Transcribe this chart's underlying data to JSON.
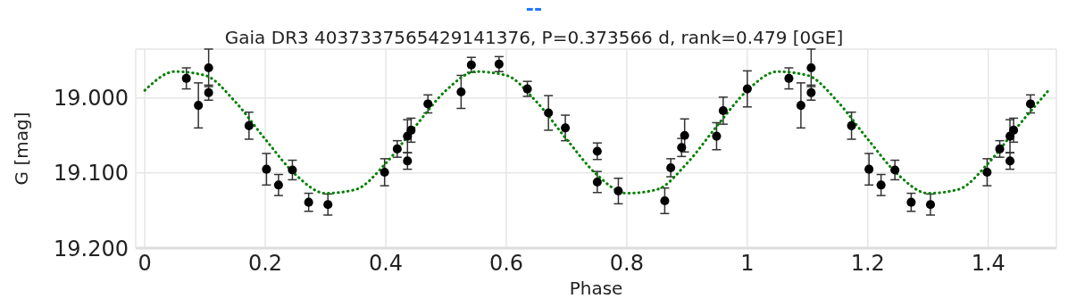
{
  "chart_data": {
    "type": "scatter",
    "title": "Gaia DR3 4037337565429141376, P=0.373566 d, rank=0.479 [0GE]",
    "annotations": [
      "--"
    ],
    "xlabel": "Phase",
    "ylabel": "G [mag]",
    "xlim": [
      -0.015,
      1.513
    ],
    "xticks": [
      0,
      0.2,
      0.4,
      0.6,
      0.8,
      1,
      1.2,
      1.4
    ],
    "ylim": [
      19.2,
      18.935
    ],
    "yticks": [
      {
        "value": 19.2,
        "label": "19.200"
      },
      {
        "value": 19.1,
        "label": "19.100"
      },
      {
        "value": 19,
        "label": "19.000"
      }
    ],
    "grid": true,
    "series": [
      {
        "color": "#000000",
        "marker": "circle",
        "x": [
          0.069,
          0.089,
          0.106,
          0.106,
          0.173,
          0.202,
          0.222,
          0.245,
          0.272,
          0.304,
          0.398,
          0.419,
          0.436,
          0.442,
          0.436,
          0.47,
          0.525,
          0.542,
          0.588,
          0.635,
          0.67,
          0.698,
          0.751,
          0.751,
          0.786,
          0.863,
          0.873,
          0.891,
          0.896,
          0.949,
          0.96,
          1.0,
          1.069,
          1.089,
          1.106,
          1.106,
          1.173,
          1.202,
          1.222,
          1.245,
          1.272,
          1.304,
          1.398,
          1.419,
          1.436,
          1.442,
          1.436,
          1.47
        ],
        "values": [
          18.974,
          19.01,
          18.96,
          18.993,
          19.037,
          19.095,
          19.116,
          19.096,
          19.139,
          19.142,
          19.099,
          19.068,
          19.051,
          19.043,
          19.084,
          19.008,
          18.992,
          18.956,
          18.955,
          18.988,
          19.02,
          19.04,
          19.071,
          19.112,
          19.124,
          19.137,
          19.093,
          19.066,
          19.05,
          19.051,
          19.017,
          18.988,
          18.974,
          19.01,
          18.96,
          18.993,
          19.037,
          19.095,
          19.116,
          19.096,
          19.139,
          19.142,
          19.099,
          19.068,
          19.051,
          19.043,
          19.084,
          19.008
        ],
        "errors": [
          0.014,
          0.03,
          0.025,
          0.01,
          0.018,
          0.021,
          0.014,
          0.013,
          0.012,
          0.014,
          0.018,
          0.011,
          0.022,
          0.016,
          0.011,
          0.012,
          0.022,
          0.01,
          0.01,
          0.01,
          0.023,
          0.017,
          0.011,
          0.014,
          0.017,
          0.017,
          0.012,
          0.012,
          0.022,
          0.018,
          0.018,
          0.024,
          0.014,
          0.03,
          0.025,
          0.01,
          0.018,
          0.021,
          0.014,
          0.013,
          0.012,
          0.014,
          0.018,
          0.011,
          0.022,
          0.016,
          0.011,
          0.012
        ]
      },
      {
        "type": "line",
        "color": "#008000",
        "line_style": "dotted",
        "marker": "none",
        "x": [
          0,
          0.05,
          0.1,
          0.15,
          0.2,
          0.25,
          0.3,
          0.35,
          0.4,
          0.45,
          0.5,
          0.55,
          0.6,
          0.65,
          0.7,
          0.75,
          0.8,
          0.85,
          0.9,
          0.95,
          1,
          1.05,
          1.1,
          1.15,
          1.2,
          1.25,
          1.3,
          1.35,
          1.4,
          1.45,
          1.5
        ],
        "values": [
          18.99,
          18.965,
          18.97,
          19.005,
          19.055,
          19.102,
          19.127,
          19.122,
          19.087,
          19.037,
          18.99,
          18.965,
          18.97,
          19.005,
          19.055,
          19.102,
          19.127,
          19.122,
          19.087,
          19.037,
          18.99,
          18.965,
          18.97,
          19.005,
          19.055,
          19.102,
          19.127,
          19.122,
          19.087,
          19.037,
          18.99
        ]
      }
    ]
  }
}
